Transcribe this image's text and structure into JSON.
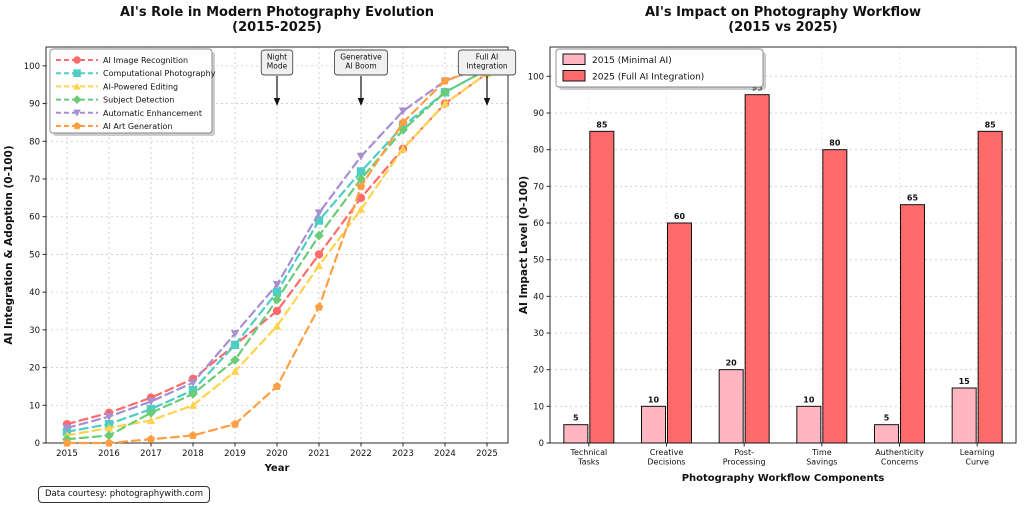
{
  "figure": {
    "footnote": "Data courtesy: photographywith.com",
    "background": "#ffffff",
    "text_color": "#111111",
    "grid_color": "#c9c9c9",
    "spine_color": "#2a2a2a"
  },
  "chart_data": [
    {
      "type": "line",
      "title": "AI's Role in Modern Photography Evolution\n(2015-2025)",
      "xlabel": "Year",
      "ylabel": "AI Integration & Adoption (0-100)",
      "x": [
        2015,
        2016,
        2017,
        2018,
        2019,
        2020,
        2021,
        2022,
        2023,
        2024,
        2025
      ],
      "yticks": [
        0,
        10,
        20,
        30,
        40,
        50,
        60,
        70,
        80,
        90,
        100
      ],
      "ylim": [
        0,
        105
      ],
      "grid": true,
      "legend_position": "upper left",
      "line_style": "dashed",
      "series": [
        {
          "name": "AI Image Recognition",
          "color": "#FF6B6B",
          "marker": "circle",
          "values": [
            5,
            8,
            12,
            17,
            26,
            35,
            50,
            65,
            78,
            90,
            98
          ]
        },
        {
          "name": "Computational Photography",
          "color": "#4ECDC4",
          "marker": "square",
          "values": [
            3,
            5,
            9,
            14,
            26,
            40,
            59,
            72,
            84,
            93,
            99
          ]
        },
        {
          "name": "AI-Powered Editing",
          "color": "#FFD34E",
          "marker": "triangle-up",
          "values": [
            2,
            4,
            6,
            10,
            19,
            31,
            47,
            62,
            78,
            90,
            98
          ]
        },
        {
          "name": "Subject Detection",
          "color": "#6BCB77",
          "marker": "diamond",
          "values": [
            1,
            2,
            8,
            13,
            22,
            38,
            55,
            70,
            83,
            93,
            99
          ]
        },
        {
          "name": "Automatic Enhancement",
          "color": "#A78FD0",
          "marker": "triangle-down",
          "values": [
            4,
            7,
            11,
            16,
            29,
            42,
            61,
            76,
            88,
            96,
            100
          ]
        },
        {
          "name": "AI Art Generation",
          "color": "#FF9F43",
          "marker": "pentagon",
          "values": [
            0,
            0,
            1,
            2,
            5,
            15,
            36,
            68,
            85,
            96,
            100
          ]
        }
      ],
      "annotations": [
        {
          "label": "Night\nMode",
          "year": 2020
        },
        {
          "label": "Generative\nAI Boom",
          "year": 2022
        },
        {
          "label": "Full AI\nIntegration",
          "year": 2025
        }
      ]
    },
    {
      "type": "bar",
      "title": "AI's Impact on Photography Workflow\n(2015 vs 2025)",
      "xlabel": "Photography Workflow Components",
      "ylabel": "AI Impact Level (0-100)",
      "categories": [
        "Technical\nTasks",
        "Creative\nDecisions",
        "Post-\nProcessing",
        "Time\nSavings",
        "Authenticity\nConcerns",
        "Learning\nCurve"
      ],
      "yticks": [
        0,
        10,
        20,
        30,
        40,
        50,
        60,
        70,
        80,
        90,
        100
      ],
      "ylim": [
        0,
        108
      ],
      "grid": true,
      "legend_position": "upper left",
      "bar_edge_color": "#111111",
      "series": [
        {
          "name": "2015 (Minimal AI)",
          "color": "#FFB6C1",
          "values": [
            5,
            10,
            20,
            10,
            5,
            15
          ]
        },
        {
          "name": "2025 (Full AI Integration)",
          "color": "#FF6B6B",
          "values": [
            85,
            60,
            95,
            80,
            65,
            85
          ]
        }
      ],
      "value_labels": true
    }
  ]
}
